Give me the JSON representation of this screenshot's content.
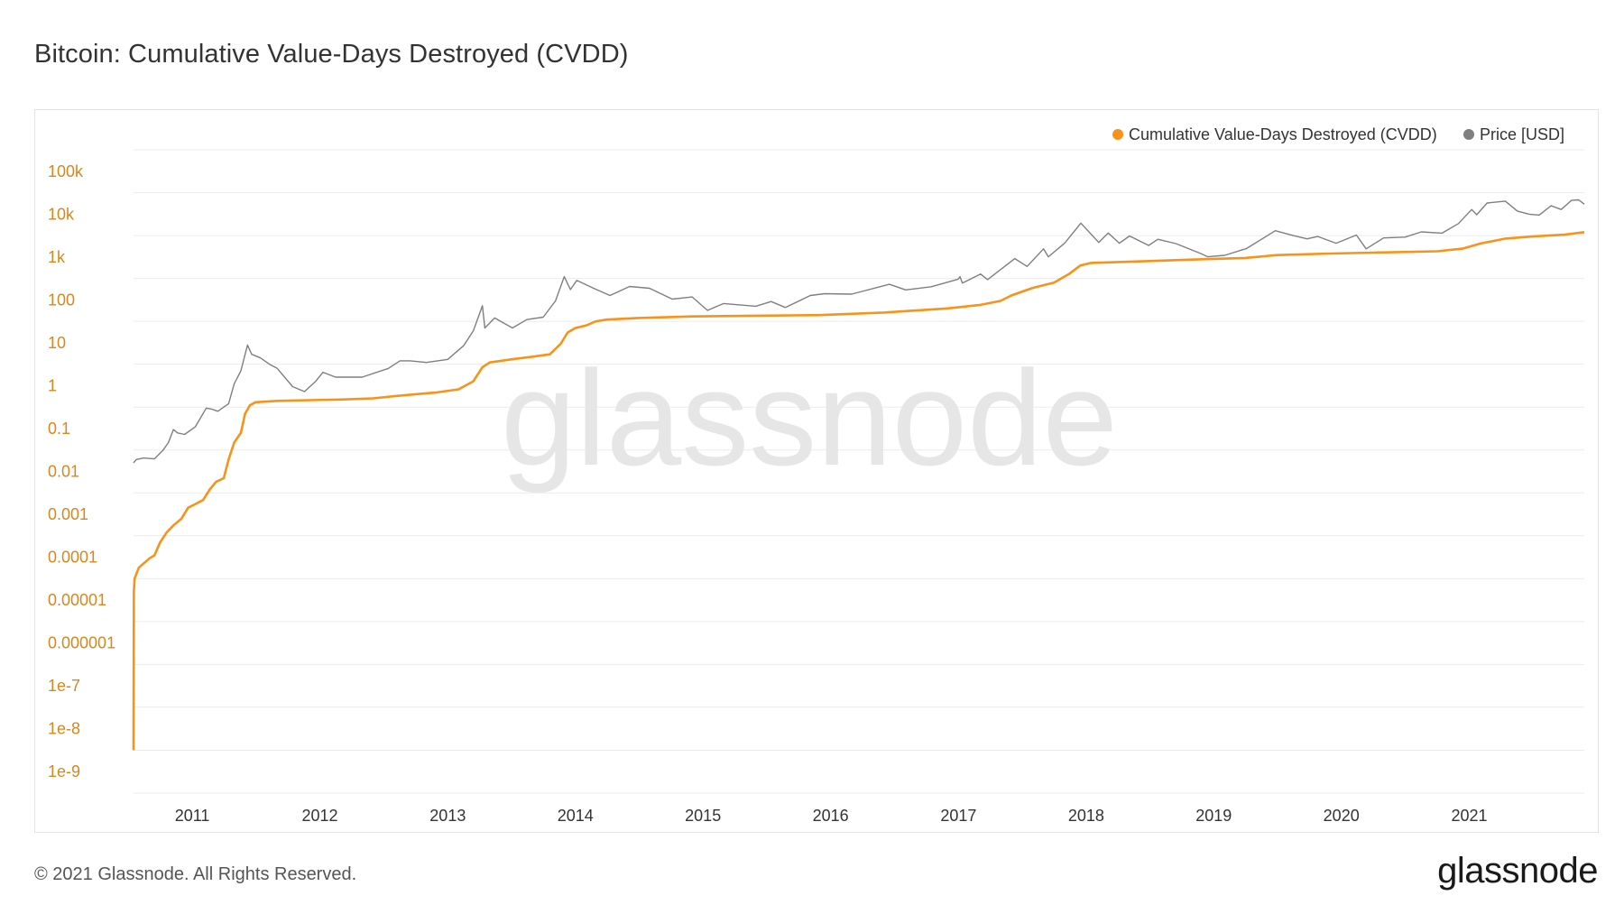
{
  "page": {
    "title": "Bitcoin: Cumulative Value-Days Destroyed (CVDD)",
    "copyright": "© 2021 Glassnode. All Rights Reserved.",
    "logo_text": "glassnode",
    "watermark_text": "glassnode"
  },
  "chart_data": {
    "type": "line",
    "title": "Bitcoin: Cumulative Value-Days Destroyed (CVDD)",
    "xlabel": "",
    "ylabel": "",
    "y_scale": "log",
    "ylim": [
      1e-09,
      1000000
    ],
    "xlim": [
      "2010-07-17",
      "2021-11-26"
    ],
    "grid": true,
    "legend_position": "top-right",
    "y_ticks": [
      {
        "value": 1e-09,
        "label": "1e-9"
      },
      {
        "value": 1e-08,
        "label": "1e-8"
      },
      {
        "value": 1e-07,
        "label": "1e-7"
      },
      {
        "value": 1e-06,
        "label": "0.000001"
      },
      {
        "value": 1e-05,
        "label": "0.00001"
      },
      {
        "value": 0.0001,
        "label": "0.0001"
      },
      {
        "value": 0.001,
        "label": "0.001"
      },
      {
        "value": 0.01,
        "label": "0.01"
      },
      {
        "value": 0.1,
        "label": "0.1"
      },
      {
        "value": 1,
        "label": "1"
      },
      {
        "value": 10,
        "label": "10"
      },
      {
        "value": 100,
        "label": "100"
      },
      {
        "value": 1000,
        "label": "1k"
      },
      {
        "value": 10000,
        "label": "10k"
      },
      {
        "value": 100000,
        "label": "100k"
      }
    ],
    "x_ticks": [
      {
        "date": "2011-01-01",
        "label": "2011"
      },
      {
        "date": "2012-01-01",
        "label": "2012"
      },
      {
        "date": "2013-01-01",
        "label": "2013"
      },
      {
        "date": "2014-01-01",
        "label": "2014"
      },
      {
        "date": "2015-01-01",
        "label": "2015"
      },
      {
        "date": "2016-01-01",
        "label": "2016"
      },
      {
        "date": "2017-01-01",
        "label": "2017"
      },
      {
        "date": "2018-01-01",
        "label": "2018"
      },
      {
        "date": "2019-01-01",
        "label": "2019"
      },
      {
        "date": "2020-01-01",
        "label": "2020"
      },
      {
        "date": "2021-01-01",
        "label": "2021"
      }
    ],
    "tick_color": "#d9861c",
    "series": [
      {
        "name": "Cumulative Value-Days Destroyed (CVDD)",
        "color": "#f7931a",
        "points": [
          [
            "2010-07-17",
            1e-08
          ],
          [
            "2010-07-18",
            5e-05
          ],
          [
            "2010-07-20",
            0.0001
          ],
          [
            "2010-08-01",
            0.00018
          ],
          [
            "2010-09-01",
            0.0003
          ],
          [
            "2010-09-15",
            0.00035
          ],
          [
            "2010-10-01",
            0.0007
          ],
          [
            "2010-10-20",
            0.0012
          ],
          [
            "2010-11-10",
            0.0018
          ],
          [
            "2010-12-01",
            0.0025
          ],
          [
            "2010-12-20",
            0.0045
          ],
          [
            "2011-01-10",
            0.0055
          ],
          [
            "2011-02-01",
            0.0068
          ],
          [
            "2011-02-20",
            0.012
          ],
          [
            "2011-03-10",
            0.018
          ],
          [
            "2011-04-01",
            0.022
          ],
          [
            "2011-04-15",
            0.06
          ],
          [
            "2011-05-01",
            0.15
          ],
          [
            "2011-05-20",
            0.25
          ],
          [
            "2011-06-01",
            0.7
          ],
          [
            "2011-06-15",
            1.1
          ],
          [
            "2011-07-01",
            1.3
          ],
          [
            "2011-09-01",
            1.4
          ],
          [
            "2011-12-01",
            1.45
          ],
          [
            "2012-03-01",
            1.5
          ],
          [
            "2012-06-01",
            1.6
          ],
          [
            "2012-08-01",
            1.8
          ],
          [
            "2012-10-01",
            2.0
          ],
          [
            "2012-12-01",
            2.2
          ],
          [
            "2013-02-01",
            2.6
          ],
          [
            "2013-03-15",
            4.0
          ],
          [
            "2013-04-10",
            8.5
          ],
          [
            "2013-05-01",
            11
          ],
          [
            "2013-07-01",
            13
          ],
          [
            "2013-09-01",
            15
          ],
          [
            "2013-10-20",
            17
          ],
          [
            "2013-11-20",
            30
          ],
          [
            "2013-12-10",
            55
          ],
          [
            "2014-01-01",
            70
          ],
          [
            "2014-02-01",
            80
          ],
          [
            "2014-03-01",
            100
          ],
          [
            "2014-04-01",
            110
          ],
          [
            "2014-07-01",
            120
          ],
          [
            "2014-12-01",
            130
          ],
          [
            "2015-06-01",
            135
          ],
          [
            "2015-12-01",
            140
          ],
          [
            "2016-06-01",
            160
          ],
          [
            "2016-12-01",
            200
          ],
          [
            "2017-03-01",
            240
          ],
          [
            "2017-05-01",
            300
          ],
          [
            "2017-06-01",
            400
          ],
          [
            "2017-08-01",
            600
          ],
          [
            "2017-10-01",
            800
          ],
          [
            "2017-11-15",
            1300
          ],
          [
            "2017-12-15",
            2000
          ],
          [
            "2018-01-15",
            2300
          ],
          [
            "2018-06-01",
            2500
          ],
          [
            "2018-12-01",
            2800
          ],
          [
            "2019-04-01",
            3000
          ],
          [
            "2019-07-01",
            3500
          ],
          [
            "2019-12-01",
            3800
          ],
          [
            "2020-04-01",
            4000
          ],
          [
            "2020-10-01",
            4300
          ],
          [
            "2020-12-15",
            5000
          ],
          [
            "2021-02-01",
            6500
          ],
          [
            "2021-04-15",
            8500
          ],
          [
            "2021-07-01",
            9500
          ],
          [
            "2021-10-01",
            10500
          ],
          [
            "2021-11-26",
            12000
          ]
        ]
      },
      {
        "name": "Price [USD]",
        "color": "#7f7f7f",
        "points": [
          [
            "2010-07-17",
            0.05
          ],
          [
            "2010-07-25",
            0.06
          ],
          [
            "2010-08-15",
            0.065
          ],
          [
            "2010-09-15",
            0.062
          ],
          [
            "2010-10-10",
            0.1
          ],
          [
            "2010-10-25",
            0.15
          ],
          [
            "2010-11-08",
            0.3
          ],
          [
            "2010-11-20",
            0.25
          ],
          [
            "2010-12-10",
            0.23
          ],
          [
            "2011-01-10",
            0.35
          ],
          [
            "2011-02-10",
            0.95
          ],
          [
            "2011-02-25",
            0.9
          ],
          [
            "2011-03-15",
            0.8
          ],
          [
            "2011-04-15",
            1.2
          ],
          [
            "2011-05-01",
            3.5
          ],
          [
            "2011-05-20",
            7
          ],
          [
            "2011-06-08",
            28
          ],
          [
            "2011-06-20",
            17
          ],
          [
            "2011-07-15",
            14
          ],
          [
            "2011-08-10",
            10
          ],
          [
            "2011-09-01",
            8
          ],
          [
            "2011-10-15",
            3
          ],
          [
            "2011-11-18",
            2.3
          ],
          [
            "2011-12-20",
            4
          ],
          [
            "2012-01-10",
            6.5
          ],
          [
            "2012-02-15",
            5
          ],
          [
            "2012-05-01",
            5
          ],
          [
            "2012-07-15",
            8
          ],
          [
            "2012-08-17",
            12
          ],
          [
            "2012-09-15",
            12
          ],
          [
            "2012-11-01",
            11
          ],
          [
            "2013-01-01",
            13
          ],
          [
            "2013-02-15",
            27
          ],
          [
            "2013-03-15",
            60
          ],
          [
            "2013-04-10",
            230
          ],
          [
            "2013-04-17",
            70
          ],
          [
            "2013-05-15",
            120
          ],
          [
            "2013-07-05",
            70
          ],
          [
            "2013-08-15",
            110
          ],
          [
            "2013-10-01",
            125
          ],
          [
            "2013-11-05",
            300
          ],
          [
            "2013-11-30",
            1100
          ],
          [
            "2013-12-18",
            550
          ],
          [
            "2014-01-05",
            900
          ],
          [
            "2014-02-20",
            600
          ],
          [
            "2014-04-10",
            400
          ],
          [
            "2014-06-05",
            650
          ],
          [
            "2014-08-01",
            590
          ],
          [
            "2014-10-05",
            330
          ],
          [
            "2014-12-01",
            370
          ],
          [
            "2015-01-14",
            180
          ],
          [
            "2015-03-01",
            260
          ],
          [
            "2015-06-01",
            225
          ],
          [
            "2015-07-15",
            290
          ],
          [
            "2015-08-25",
            210
          ],
          [
            "2015-11-04",
            400
          ],
          [
            "2015-12-15",
            440
          ],
          [
            "2016-03-01",
            430
          ],
          [
            "2016-06-17",
            730
          ],
          [
            "2016-08-03",
            540
          ],
          [
            "2016-10-15",
            640
          ],
          [
            "2016-12-31",
            960
          ],
          [
            "2017-01-05",
            1100
          ],
          [
            "2017-01-12",
            780
          ],
          [
            "2017-03-05",
            1270
          ],
          [
            "2017-03-25",
            940
          ],
          [
            "2017-06-11",
            2900
          ],
          [
            "2017-07-16",
            1900
          ],
          [
            "2017-09-01",
            4900
          ],
          [
            "2017-09-15",
            3200
          ],
          [
            "2017-11-01",
            6700
          ],
          [
            "2017-12-17",
            19500
          ],
          [
            "2018-02-06",
            6900
          ],
          [
            "2018-03-05",
            11500
          ],
          [
            "2018-04-06",
            6600
          ],
          [
            "2018-05-05",
            9800
          ],
          [
            "2018-06-29",
            5900
          ],
          [
            "2018-07-25",
            8200
          ],
          [
            "2018-09-15",
            6500
          ],
          [
            "2018-11-25",
            3800
          ],
          [
            "2018-12-15",
            3200
          ],
          [
            "2019-02-01",
            3450
          ],
          [
            "2019-04-05",
            5000
          ],
          [
            "2019-06-26",
            13000
          ],
          [
            "2019-08-15",
            10100
          ],
          [
            "2019-09-25",
            8400
          ],
          [
            "2019-10-26",
            9500
          ],
          [
            "2019-12-17",
            6600
          ],
          [
            "2020-02-13",
            10300
          ],
          [
            "2020-03-12",
            4900
          ],
          [
            "2020-05-01",
            8800
          ],
          [
            "2020-07-01",
            9200
          ],
          [
            "2020-08-17",
            12200
          ],
          [
            "2020-10-15",
            11400
          ],
          [
            "2020-12-01",
            19000
          ],
          [
            "2021-01-08",
            40500
          ],
          [
            "2021-01-22",
            30500
          ],
          [
            "2021-02-21",
            57500
          ],
          [
            "2021-04-14",
            63500
          ],
          [
            "2021-05-19",
            37000
          ],
          [
            "2021-06-22",
            31500
          ],
          [
            "2021-07-20",
            30000
          ],
          [
            "2021-08-23",
            49500
          ],
          [
            "2021-09-21",
            40500
          ],
          [
            "2021-10-20",
            66000
          ],
          [
            "2021-11-10",
            68000
          ],
          [
            "2021-11-26",
            54000
          ]
        ]
      }
    ]
  }
}
